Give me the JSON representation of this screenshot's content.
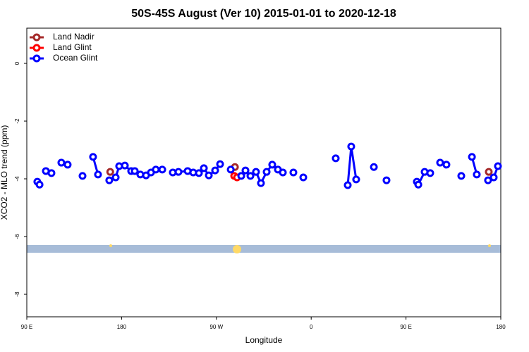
{
  "chart_data": {
    "type": "line",
    "title": "50S-45S August (Ver 10)   2015-01-01 to 2020-12-18",
    "x_label": "Longitude",
    "y_label": "XCO2 - MLO trend (ppm)",
    "xlim": [
      90,
      540
    ],
    "ylim": [
      -8.78,
      1.22
    ],
    "xticks": [
      {
        "value": 90,
        "label": "90 E"
      },
      180,
      {
        "value": 270,
        "label": "90 W"
      },
      {
        "value": 360,
        "label": "0"
      },
      {
        "value": 450,
        "label": "90 E"
      },
      {
        "value": 540,
        "label": "180"
      }
    ],
    "yticks": [
      0,
      -2,
      -4,
      -6,
      -8
    ],
    "legend": "top-left",
    "series": [
      {
        "name": "Land Nadir",
        "color": "#a52a2a",
        "x": [
          169.2,
          null,
          287.6,
          null,
          528.6
        ],
        "values": [
          -3.76,
          null,
          -3.59,
          null,
          -3.76
        ]
      },
      {
        "name": "Land Glint",
        "color": "#ff0000",
        "x": [
          286.9,
          289.6
        ],
        "values": [
          -3.9,
          -3.95
        ]
      },
      {
        "name": "Ocean Glint",
        "color": "#0000ff",
        "x": [
          100,
          102.1,
          null,
          108.1,
          113.4,
          null,
          122.8,
          128.8,
          null,
          142.9,
          null,
          152.9,
          157.6,
          null,
          168.3,
          174.4,
          177.7,
          183.1,
          189.1,
          192.5,
          197.8,
          203.2,
          207.9,
          212.5,
          218.6,
          null,
          228.6,
          234,
          242.7,
          248,
          253.4,
          258.1,
          262.8,
          268.8,
          273.5,
          null,
          283.6,
          null,
          293.6,
          297.6,
          302.3,
          307.6,
          312.3,
          317.7,
          323,
          328.4,
          333.1,
          null,
          343.1,
          null,
          352.5,
          null,
          383.3,
          null,
          394.7,
          398,
          402.7,
          null,
          419.5,
          null,
          431.5,
          null,
          460.3,
          461.7,
          467.7,
          473,
          null,
          482.4,
          488.4,
          null,
          502.5,
          null,
          512.6,
          517.2,
          null,
          527.9,
          533.3,
          537.3
        ],
        "values": [
          -4.1,
          -4.2,
          null,
          -3.73,
          -3.8,
          null,
          -3.44,
          -3.51,
          null,
          -3.9,
          null,
          -3.24,
          -3.85,
          null,
          -4.05,
          -3.95,
          -3.56,
          -3.54,
          -3.73,
          -3.73,
          -3.85,
          -3.88,
          -3.78,
          -3.68,
          -3.68,
          null,
          -3.78,
          -3.76,
          -3.73,
          -3.78,
          -3.8,
          -3.63,
          -3.88,
          -3.71,
          -3.49,
          null,
          -3.68,
          null,
          -3.9,
          -3.71,
          -3.9,
          -3.76,
          -4.15,
          -3.76,
          -3.51,
          -3.68,
          -3.78,
          null,
          -3.78,
          null,
          -3.95,
          null,
          -3.29,
          null,
          -4.22,
          -2.88,
          -4.02,
          null,
          -3.59,
          null,
          -4.05,
          null,
          -4.1,
          -4.2,
          -3.76,
          -3.8,
          null,
          -3.44,
          -3.51,
          null,
          -3.9,
          null,
          -3.24,
          -3.85,
          null,
          -4.05,
          -3.95,
          -3.56
        ]
      }
    ]
  }
}
